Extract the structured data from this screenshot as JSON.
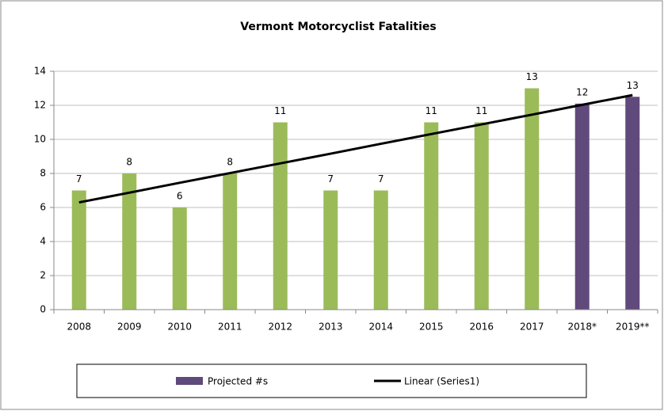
{
  "chart_data": {
    "type": "bar",
    "title": "Vermont Motorcyclist Fatalities",
    "categories": [
      "2008",
      "2009",
      "2010",
      "2011",
      "2012",
      "2013",
      "2014",
      "2015",
      "2016",
      "2017",
      "2018*",
      "2019**"
    ],
    "series": [
      {
        "color": "#9bbb59",
        "values": [
          7,
          8,
          6,
          8,
          11,
          7,
          7,
          11,
          11,
          13,
          null,
          null
        ]
      },
      {
        "name": "Projected #s",
        "color": "#604a7b",
        "values": [
          null,
          null,
          null,
          null,
          null,
          null,
          null,
          null,
          null,
          null,
          12.1,
          12.5
        ],
        "value_labels": [
          null,
          null,
          null,
          null,
          null,
          null,
          null,
          null,
          null,
          null,
          "12",
          "13"
        ]
      }
    ],
    "trendline": {
      "name": "Linear (Series1)",
      "color": "#000000",
      "values": [
        6.3,
        6.87,
        7.45,
        8.02,
        8.59,
        9.16,
        9.74,
        10.31,
        10.88,
        11.45,
        12.03,
        12.6
      ]
    },
    "ylim": [
      0,
      14
    ],
    "yticks": [
      0,
      2,
      4,
      6,
      8,
      10,
      12,
      14
    ],
    "grid": true
  }
}
